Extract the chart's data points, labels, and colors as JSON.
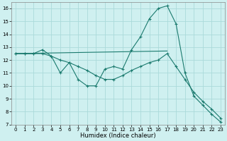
{
  "xlabel": "Humidex (Indice chaleur)",
  "xlim": [
    -0.5,
    23.5
  ],
  "ylim": [
    7,
    16.5
  ],
  "yticks": [
    7,
    8,
    9,
    10,
    11,
    12,
    13,
    14,
    15,
    16
  ],
  "xticks": [
    0,
    1,
    2,
    3,
    4,
    5,
    6,
    7,
    8,
    9,
    10,
    11,
    12,
    13,
    14,
    15,
    16,
    17,
    18,
    19,
    20,
    21,
    22,
    23
  ],
  "color": "#1a7a6e",
  "bg_color": "#cff0f0",
  "grid_color": "#aadada",
  "line1_x": [
    0,
    1,
    2,
    3,
    4,
    5,
    6,
    7,
    8,
    9,
    10,
    11,
    12,
    13,
    14,
    15,
    16,
    17,
    18,
    19,
    20,
    21,
    22,
    23
  ],
  "line1_y": [
    12.5,
    12.5,
    12.5,
    12.8,
    12.3,
    11.0,
    11.8,
    10.5,
    10.0,
    10.0,
    11.3,
    11.5,
    11.3,
    12.8,
    13.8,
    15.2,
    16.0,
    16.2,
    14.8,
    11.0,
    9.2,
    8.5,
    7.8,
    7.2
  ],
  "line2_x": [
    0,
    1,
    2,
    3,
    4,
    5,
    6,
    7,
    8,
    9,
    10,
    11,
    12,
    13,
    14,
    15,
    16,
    17,
    18,
    19,
    20,
    21,
    22,
    23
  ],
  "line2_y": [
    12.5,
    12.5,
    12.5,
    12.5,
    12.3,
    12.0,
    11.8,
    11.5,
    11.2,
    10.8,
    10.5,
    10.5,
    10.8,
    11.2,
    11.5,
    11.8,
    12.0,
    12.5,
    11.5,
    10.5,
    9.5,
    8.8,
    8.2,
    7.5
  ],
  "line3_x": [
    0,
    17
  ],
  "line3_y": [
    12.5,
    12.7
  ]
}
